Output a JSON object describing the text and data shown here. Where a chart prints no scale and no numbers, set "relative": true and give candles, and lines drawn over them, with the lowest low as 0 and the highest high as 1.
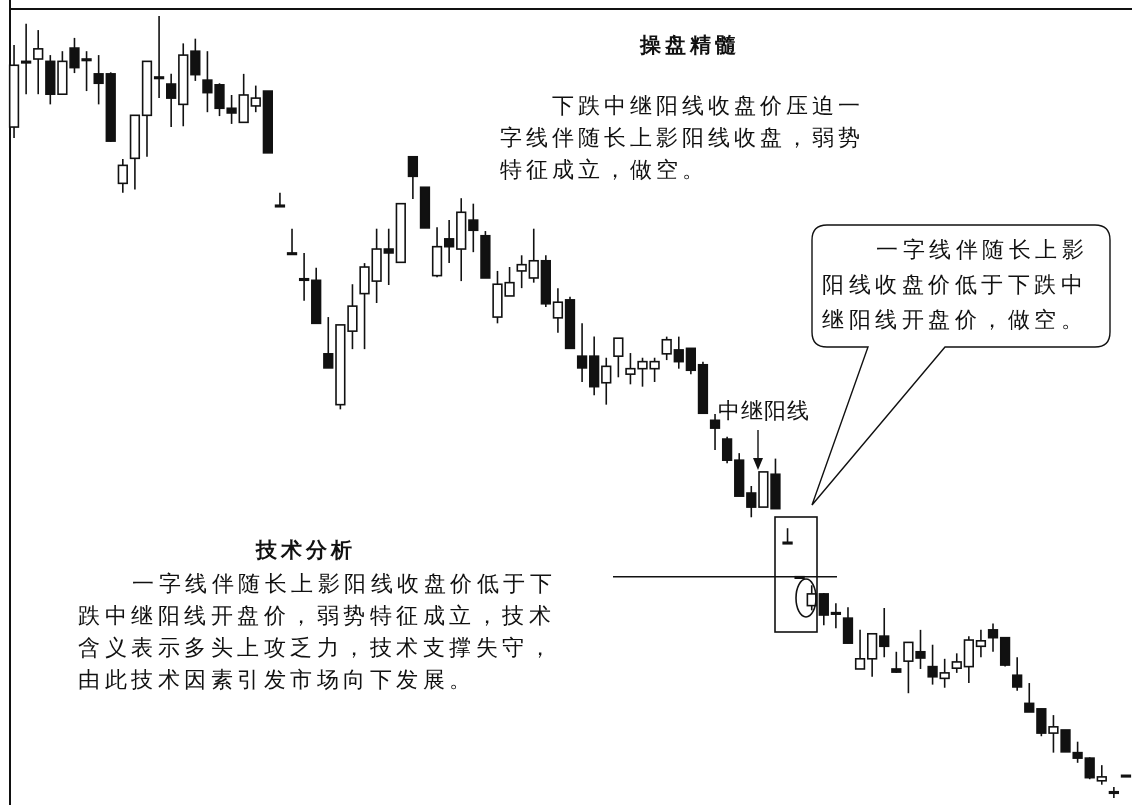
{
  "chart_data": {
    "type": "candlestick",
    "relative": true,
    "categories": [
      null,
      null,
      null,
      null,
      null,
      null,
      null,
      null,
      null,
      null,
      null,
      null,
      null,
      null,
      null,
      null,
      null,
      null,
      null,
      null,
      null,
      null,
      null,
      null,
      null,
      null,
      null,
      null,
      null,
      null,
      null,
      null,
      null,
      null,
      null,
      null,
      null,
      null,
      null,
      null,
      null,
      null,
      null,
      null,
      null,
      null,
      null,
      null,
      null,
      null,
      null,
      null,
      null,
      null,
      null,
      null,
      null,
      null,
      null,
      null,
      null,
      null,
      null,
      null,
      null,
      null,
      null,
      null,
      null,
      null,
      null,
      null,
      null,
      null,
      null,
      null,
      null,
      null,
      null,
      null,
      null,
      null,
      null,
      null,
      null,
      null,
      null,
      null,
      null,
      null,
      null,
      null,
      null
    ],
    "ohlc": [
      [
        0.858,
        0.963,
        0.844,
        0.937
      ],
      [
        0.942,
        0.99,
        0.9,
        0.942
      ],
      [
        0.945,
        0.982,
        0.9,
        0.958
      ],
      [
        0.942,
        0.95,
        0.887,
        0.9
      ],
      [
        0.9,
        0.955,
        0.9,
        0.942
      ],
      [
        0.959,
        0.972,
        0.927,
        0.934
      ],
      [
        0.945,
        0.955,
        0.904,
        0.944
      ],
      [
        0.926,
        0.95,
        0.887,
        0.914
      ],
      [
        0.926,
        0.928,
        0.839,
        0.84
      ],
      [
        0.786,
        0.817,
        0.774,
        0.809
      ],
      [
        0.818,
        0.873,
        0.778,
        0.873
      ],
      [
        0.873,
        0.942,
        0.82,
        0.942
      ],
      [
        0.922,
        1.0,
        0.895,
        0.922
      ],
      [
        0.913,
        0.926,
        0.858,
        0.895
      ],
      [
        0.887,
        0.965,
        0.859,
        0.95
      ],
      [
        0.955,
        0.971,
        0.917,
        0.925
      ],
      [
        0.918,
        0.955,
        0.877,
        0.902
      ],
      [
        0.912,
        0.914,
        0.872,
        0.882
      ],
      [
        0.882,
        0.899,
        0.862,
        0.876
      ],
      [
        0.864,
        0.926,
        0.864,
        0.899
      ],
      [
        0.885,
        0.911,
        0.877,
        0.895
      ],
      [
        0.904,
        0.904,
        0.825,
        0.825
      ],
      [
        0.758,
        0.774,
        0.757,
        0.758
      ],
      [
        0.697,
        0.728,
        0.696,
        0.697
      ],
      [
        0.664,
        0.697,
        0.636,
        0.664
      ],
      [
        0.662,
        0.678,
        0.607,
        0.607
      ],
      [
        0.568,
        0.615,
        0.55,
        0.55
      ],
      [
        0.503,
        0.605,
        0.497,
        0.605
      ],
      [
        0.597,
        0.657,
        0.574,
        0.629
      ],
      [
        0.645,
        0.684,
        0.574,
        0.679
      ],
      [
        0.661,
        0.728,
        0.633,
        0.702
      ],
      [
        0.702,
        0.728,
        0.656,
        0.697
      ],
      [
        0.685,
        0.76,
        0.685,
        0.76
      ],
      [
        0.82,
        0.82,
        0.766,
        0.795
      ],
      [
        0.781,
        0.781,
        0.729,
        0.729
      ],
      [
        0.668,
        0.73,
        0.666,
        0.705
      ],
      [
        0.715,
        0.739,
        0.684,
        0.705
      ],
      [
        0.702,
        0.767,
        0.661,
        0.749
      ],
      [
        0.739,
        0.76,
        0.698,
        0.726
      ],
      [
        0.719,
        0.725,
        0.665,
        0.665
      ],
      [
        0.615,
        0.674,
        0.607,
        0.657
      ],
      [
        0.642,
        0.679,
        0.642,
        0.659
      ],
      [
        0.674,
        0.694,
        0.652,
        0.682
      ],
      [
        0.665,
        0.728,
        0.659,
        0.687
      ],
      [
        0.687,
        0.694,
        0.628,
        0.632
      ],
      [
        0.614,
        0.652,
        0.595,
        0.634
      ],
      [
        0.637,
        0.641,
        0.575,
        0.575
      ],
      [
        0.565,
        0.607,
        0.532,
        0.55
      ],
      [
        0.565,
        0.59,
        0.515,
        0.526
      ],
      [
        0.531,
        0.563,
        0.503,
        0.552
      ],
      [
        0.565,
        0.588,
        0.538,
        0.588
      ],
      [
        0.542,
        0.569,
        0.529,
        0.549
      ],
      [
        0.549,
        0.563,
        0.526,
        0.558
      ],
      [
        0.549,
        0.563,
        0.532,
        0.558
      ],
      [
        0.568,
        0.59,
        0.56,
        0.586
      ],
      [
        0.573,
        0.59,
        0.549,
        0.558
      ],
      [
        0.575,
        0.575,
        0.542,
        0.547
      ],
      [
        0.554,
        0.558,
        0.492,
        0.492
      ],
      [
        0.483,
        0.491,
        0.445,
        0.473
      ],
      [
        0.459,
        0.462,
        0.428,
        0.432
      ],
      [
        0.432,
        0.441,
        0.386,
        0.386
      ],
      [
        0.39,
        0.399,
        0.359,
        0.372
      ],
      [
        0.372,
        0.417,
        0.372,
        0.417
      ],
      [
        0.414,
        0.434,
        0.37,
        0.37
      ],
      [
        0.327,
        0.345,
        0.326,
        0.327
      ],
      [
        0.283,
        0.283,
        0.281,
        0.283
      ],
      [
        0.246,
        0.272,
        0.24,
        0.261
      ],
      [
        0.261,
        0.262,
        0.221,
        0.234
      ],
      [
        0.237,
        0.249,
        0.217,
        0.237
      ],
      [
        0.23,
        0.244,
        0.198,
        0.198
      ],
      [
        0.165,
        0.215,
        0.165,
        0.178
      ],
      [
        0.178,
        0.21,
        0.155,
        0.21
      ],
      [
        0.207,
        0.243,
        0.18,
        0.194
      ],
      [
        0.165,
        0.187,
        0.16,
        0.161
      ],
      [
        0.175,
        0.199,
        0.134,
        0.199
      ],
      [
        0.187,
        0.215,
        0.165,
        0.179
      ],
      [
        0.168,
        0.196,
        0.145,
        0.155
      ],
      [
        0.153,
        0.178,
        0.141,
        0.16
      ],
      [
        0.166,
        0.185,
        0.16,
        0.174
      ],
      [
        0.168,
        0.207,
        0.147,
        0.202
      ],
      [
        0.194,
        0.215,
        0.18,
        0.201
      ],
      [
        0.215,
        0.223,
        0.187,
        0.205
      ],
      [
        0.205,
        0.205,
        0.168,
        0.17
      ],
      [
        0.157,
        0.18,
        0.137,
        0.142
      ],
      [
        0.121,
        0.147,
        0.11,
        0.11
      ],
      [
        0.114,
        0.114,
        0.079,
        0.083
      ],
      [
        0.083,
        0.106,
        0.058,
        0.091
      ],
      [
        0.087,
        0.087,
        0.059,
        0.059
      ],
      [
        0.058,
        0.072,
        0.045,
        0.051
      ],
      [
        0.051,
        0.052,
        0.024,
        0.026
      ],
      [
        0.022,
        0.042,
        0.017,
        0.027
      ],
      [
        0.008,
        0.014,
        0.0,
        0.008
      ],
      [
        0.029,
        0.029,
        0.028,
        0.029
      ]
    ],
    "ref_lines": [
      {
        "axis": "y",
        "value": 0.283
      }
    ],
    "annotations": [
      "操盘精髓",
      "下跌中继阳线收盘价压迫一字线伴随长上影阳线收盘，弱势特征成立，做空。",
      "技术分析",
      "一字线伴随长上影阳线收盘价低于下跌中继阳线开盘价，弱势特征成立，技术含义表示多头上攻乏力，技术支撑失守，由此技术因素引发市场向下发展。",
      "一字线伴随长上影阳线收盘价低于下跌中继阳线开盘价，做空。",
      "中继阳线"
    ]
  }
}
